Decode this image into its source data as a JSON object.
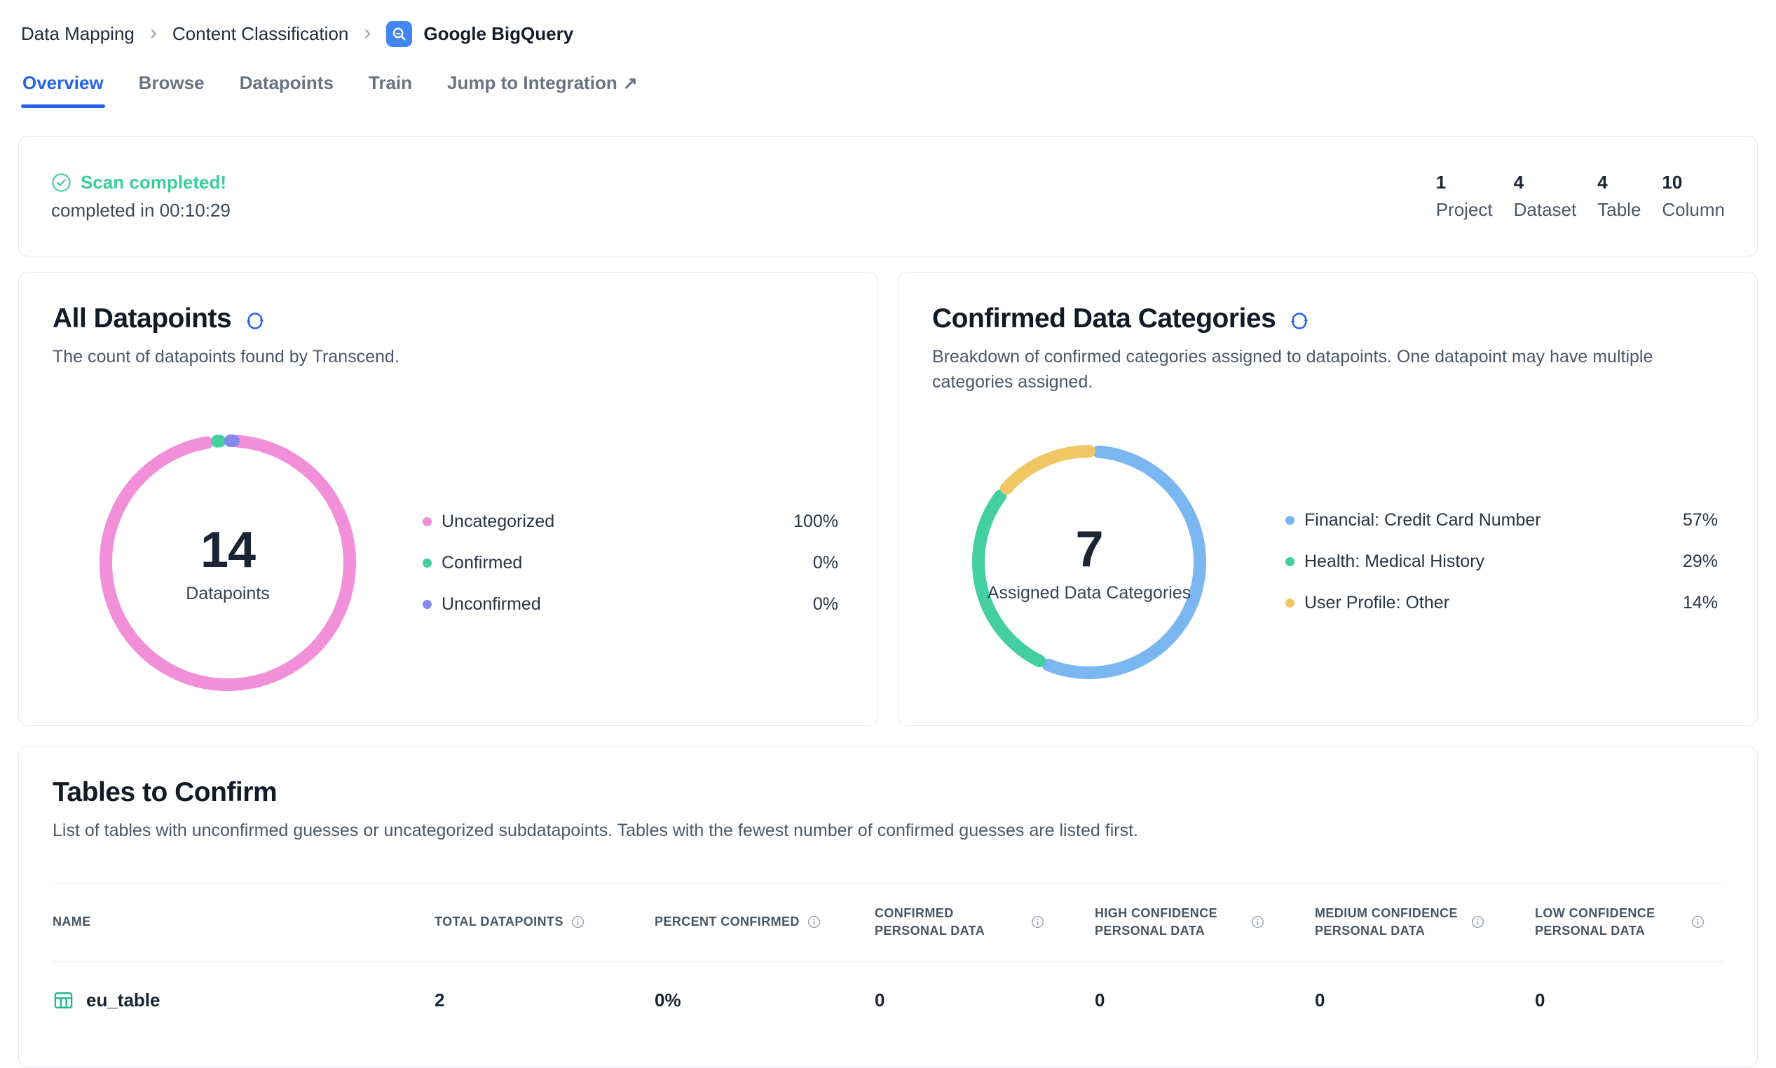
{
  "breadcrumb": {
    "items": [
      "Data Mapping",
      "Content Classification",
      "Google BigQuery"
    ]
  },
  "icons": {
    "breadcrumb_separator": "›",
    "external_link": "↗"
  },
  "tabs": [
    {
      "label": "Overview",
      "active": true
    },
    {
      "label": "Browse",
      "active": false
    },
    {
      "label": "Datapoints",
      "active": false
    },
    {
      "label": "Train",
      "active": false
    },
    {
      "label": "Jump to Integration",
      "active": false,
      "external": true
    }
  ],
  "scan": {
    "status": "Scan completed!",
    "detail": "completed in 00:10:29",
    "stats": [
      {
        "value": "1",
        "label": "Project"
      },
      {
        "value": "4",
        "label": "Dataset"
      },
      {
        "value": "4",
        "label": "Table"
      },
      {
        "value": "10",
        "label": "Column"
      }
    ]
  },
  "all_datapoints": {
    "title": "All Datapoints",
    "subtitle": "The count of datapoints found by Transcend.",
    "center_value": "14",
    "center_label": "Datapoints",
    "legend": [
      {
        "label": "Uncategorized",
        "pct": "100%"
      },
      {
        "label": "Confirmed",
        "pct": "0%"
      },
      {
        "label": "Unconfirmed",
        "pct": "0%"
      }
    ]
  },
  "confirmed_categories": {
    "title": "Confirmed Data Categories",
    "subtitle": "Breakdown of confirmed categories assigned to datapoints. One datapoint may have multiple categories assigned.",
    "center_value": "7",
    "center_label": "Assigned Data Categories",
    "legend": [
      {
        "label": "Financial: Credit Card Number",
        "pct": "57%"
      },
      {
        "label": "Health: Medical History",
        "pct": "29%"
      },
      {
        "label": "User Profile: Other",
        "pct": "14%"
      }
    ]
  },
  "tables_to_confirm": {
    "title": "Tables to Confirm",
    "subtitle": "List of tables with unconfirmed guesses or uncategorized subdatapoints. Tables with the fewest number of confirmed guesses are listed first.",
    "columns": [
      {
        "label": "NAME",
        "info": false
      },
      {
        "label": "TOTAL DATAPOINTS",
        "info": true
      },
      {
        "label": "PERCENT CONFIRMED",
        "info": true
      },
      {
        "label": "CONFIRMED PERSONAL DATA",
        "info": true
      },
      {
        "label": "HIGH CONFIDENCE PERSONAL DATA",
        "info": true
      },
      {
        "label": "MEDIUM CONFIDENCE PERSONAL DATA",
        "info": true
      },
      {
        "label": "LOW CONFIDENCE PERSONAL DATA",
        "info": true
      }
    ],
    "rows": [
      {
        "name": "eu_table",
        "values": [
          "2",
          "0%",
          "0",
          "0",
          "0",
          "0"
        ]
      }
    ]
  },
  "colors": {
    "accent_blue": "#2563EB",
    "status_green": "#3BCD9E",
    "pink": "#F18FD9",
    "mint": "#43CFA2",
    "periwinkle": "#8589EE",
    "sky_blue": "#7AB7F1",
    "amber": "#F0C763"
  },
  "chart_data": [
    {
      "type": "pie",
      "title": "All Datapoints",
      "labels": [
        "Uncategorized",
        "Confirmed",
        "Unconfirmed"
      ],
      "values": [
        100,
        0,
        0
      ],
      "unit": "%",
      "colors": [
        "#F18FD9",
        "#43CFA2",
        "#8589EE"
      ],
      "center_value": 14,
      "center_label": "Datapoints",
      "legend_position": "right"
    },
    {
      "type": "pie",
      "title": "Confirmed Data Categories",
      "labels": [
        "Financial: Credit Card Number",
        "Health: Medical History",
        "User Profile: Other"
      ],
      "values": [
        57,
        29,
        14
      ],
      "unit": "%",
      "colors": [
        "#7AB7F1",
        "#43CFA2",
        "#F0C763"
      ],
      "center_value": 7,
      "center_label": "Assigned Data Categories",
      "legend_position": "right"
    }
  ]
}
